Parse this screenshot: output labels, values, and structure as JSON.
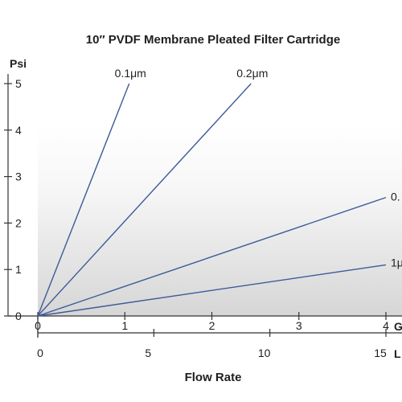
{
  "chart_data": {
    "type": "line",
    "title": "10″ PVDF Membrane Pleated Filter Cartridge",
    "ylabel": "Psi",
    "xlabel": "Flow Rate",
    "ylim": [
      0,
      5
    ],
    "yticks": [
      "0",
      "1",
      "2",
      "3",
      "4",
      "5"
    ],
    "x_axes": [
      {
        "unit": "G",
        "range": [
          0,
          4
        ],
        "ticks": [
          "0",
          "1",
          "2",
          "3",
          "4"
        ]
      },
      {
        "unit": "L",
        "range": [
          0,
          15
        ],
        "ticks": [
          "0",
          "5",
          "10",
          "15"
        ]
      }
    ],
    "series": [
      {
        "name": "0.1μm",
        "points": [
          [
            0,
            0
          ],
          [
            1.05,
            5.0
          ]
        ]
      },
      {
        "name": "0.2μm",
        "points": [
          [
            0,
            0
          ],
          [
            2.45,
            5.0
          ]
        ]
      },
      {
        "name": "0.",
        "points": [
          [
            0,
            0
          ],
          [
            4.0,
            2.55
          ]
        ]
      },
      {
        "name": "1μ",
        "points": [
          [
            0,
            0
          ],
          [
            4.0,
            1.1
          ]
        ]
      }
    ],
    "line_color": "#3d5a99",
    "grid": false
  }
}
